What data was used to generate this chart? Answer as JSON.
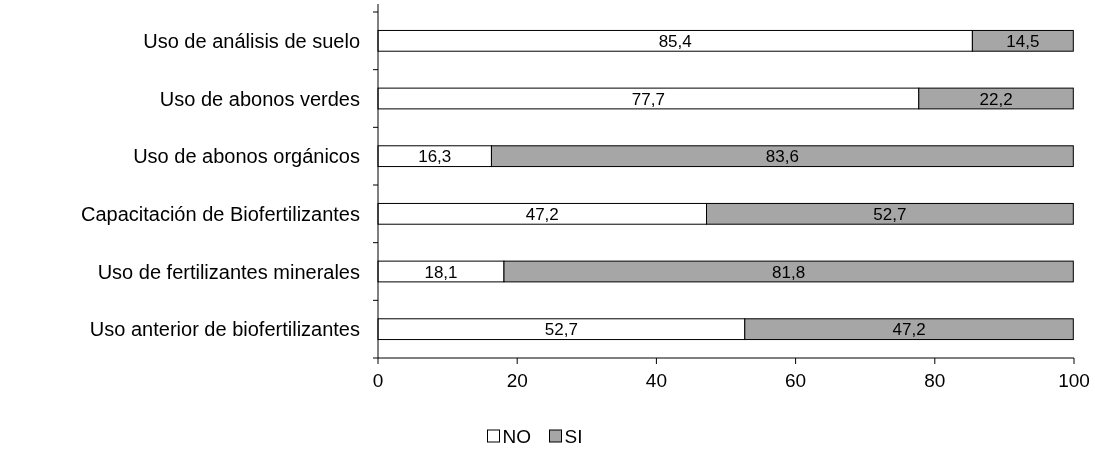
{
  "chart_data": {
    "type": "bar",
    "orientation": "horizontal",
    "stacked": true,
    "categories": [
      "Uso de análisis de suelo",
      "Uso de abonos verdes",
      "Uso de abonos orgánicos",
      "Capacitación de Biofertilizantes",
      "Uso de fertilizantes minerales",
      "Uso anterior de biofertilizantes"
    ],
    "series": [
      {
        "name": "NO",
        "color": "#ffffff",
        "values": [
          85.4,
          77.7,
          16.3,
          47.2,
          18.1,
          52.7
        ],
        "value_labels": [
          "85,4",
          "77,7",
          "16,3",
          "47,2",
          "18,1",
          "52,7"
        ]
      },
      {
        "name": "SI",
        "color": "#a6a6a6",
        "values": [
          14.5,
          22.2,
          83.6,
          52.7,
          81.8,
          47.2
        ],
        "value_labels": [
          "14,5",
          "22,2",
          "83,6",
          "52,7",
          "81,8",
          "47,2"
        ]
      }
    ],
    "xlim": [
      0,
      100
    ],
    "xticks": [
      0,
      20,
      40,
      60,
      80,
      100
    ],
    "legend": "bottom",
    "grid": false
  }
}
